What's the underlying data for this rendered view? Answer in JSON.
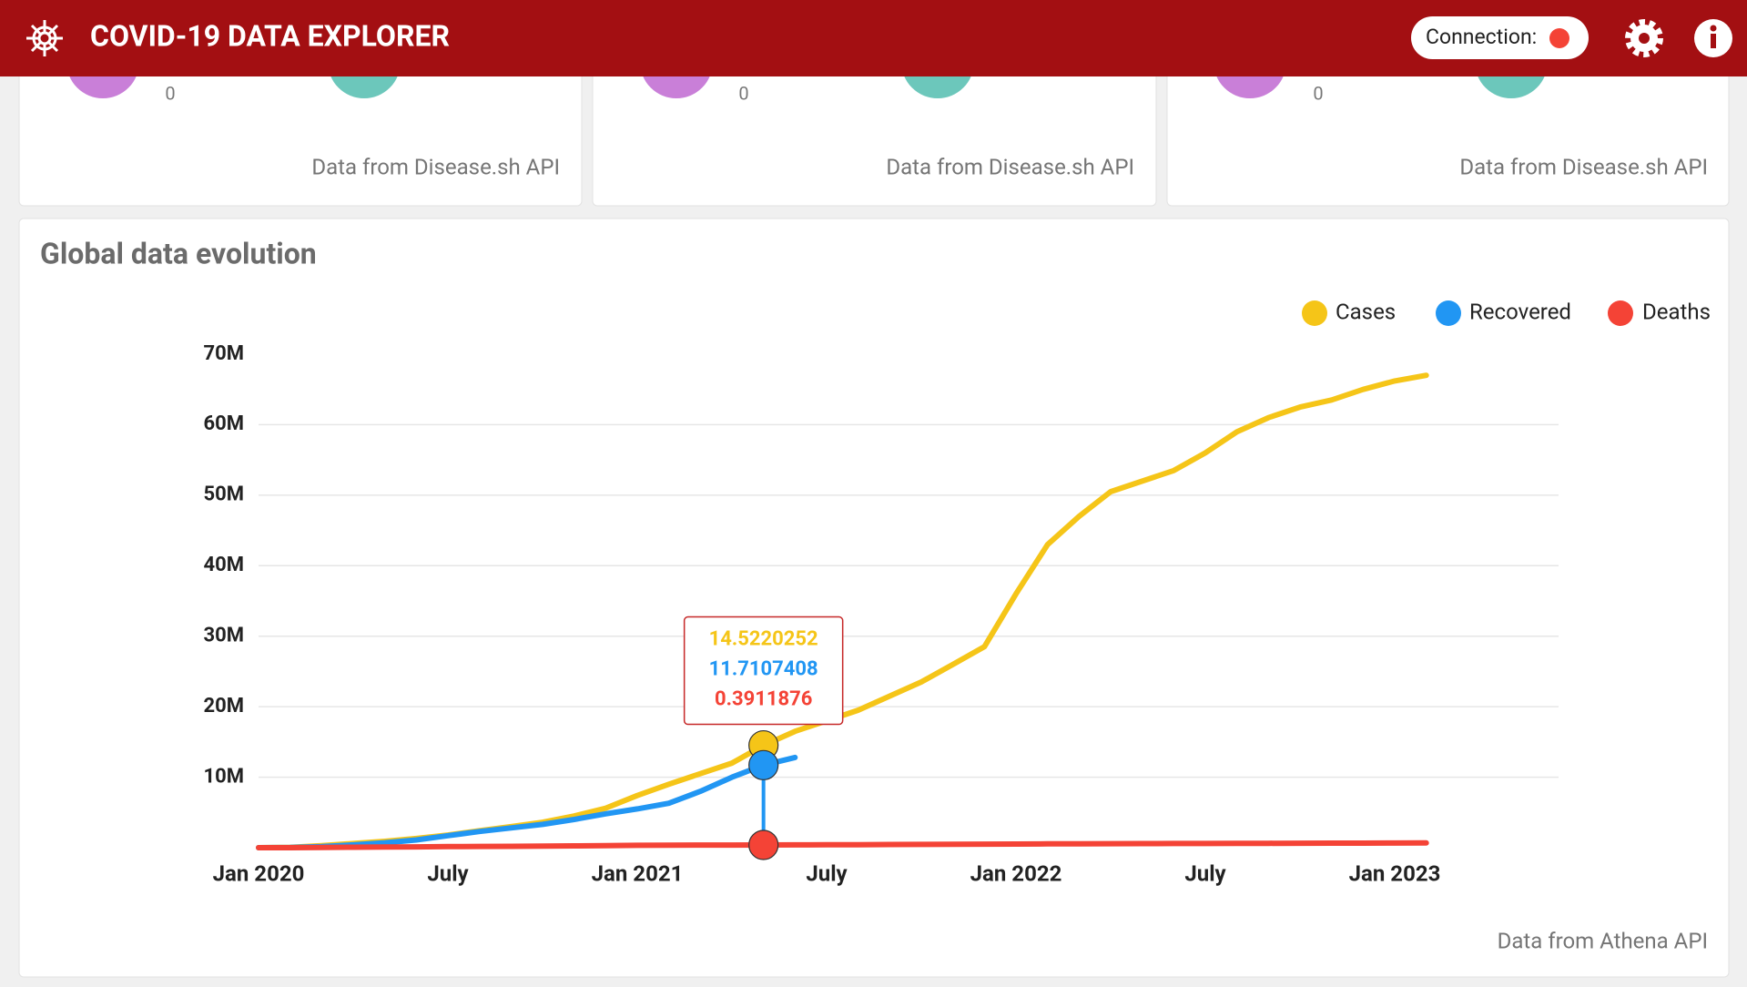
{
  "header": {
    "title": "COVID-19 DATA EXPLORER",
    "connection_label": "Connection:"
  },
  "cards": [
    {
      "value": "0",
      "source": "Data from Disease.sh API"
    },
    {
      "value": "0",
      "source": "Data from Disease.sh API"
    },
    {
      "value": "0",
      "source": "Data from Disease.sh API"
    }
  ],
  "panel": {
    "title": "Global data evolution",
    "source": "Data from Athena API"
  },
  "chart_data": {
    "type": "line",
    "x": [
      "2020-01",
      "2020-02",
      "2020-03",
      "2020-04",
      "2020-05",
      "2020-06",
      "2020-07",
      "2020-08",
      "2020-09",
      "2020-10",
      "2020-11",
      "2020-12",
      "2021-01",
      "2021-02",
      "2021-03",
      "2021-04",
      "2021-05",
      "2021-06",
      "2021-07",
      "2021-08",
      "2021-09",
      "2021-10",
      "2021-11",
      "2021-12",
      "2022-01",
      "2022-02",
      "2022-03",
      "2022-04",
      "2022-05",
      "2022-06",
      "2022-07",
      "2022-08",
      "2022-09",
      "2022-10",
      "2022-11",
      "2022-12",
      "2023-01",
      "2023-02"
    ],
    "series": [
      {
        "name": "Cases",
        "color": "#f5c518",
        "values": [
          0,
          0.05,
          0.3,
          0.6,
          0.9,
          1.3,
          1.8,
          2.4,
          3.0,
          3.6,
          4.5,
          5.6,
          7.4,
          9.0,
          10.5,
          12.0,
          14.5220252,
          16.5,
          18.0,
          19.5,
          21.5,
          23.5,
          26.0,
          28.5,
          36,
          43,
          47,
          50.5,
          52,
          53.5,
          56,
          59,
          61,
          62.5,
          63.5,
          65,
          66.2,
          67
        ]
      },
      {
        "name": "Recovered",
        "color": "#2196f3",
        "values": [
          0,
          0.03,
          0.15,
          0.4,
          0.7,
          1.1,
          1.7,
          2.3,
          2.8,
          3.3,
          4.0,
          4.8,
          5.5,
          6.3,
          8.0,
          10.0,
          11.7107408,
          12.8,
          null,
          null,
          null,
          null,
          null,
          null,
          null,
          null,
          null,
          null,
          null,
          null,
          null,
          null,
          null,
          null,
          null,
          null,
          null,
          null
        ]
      },
      {
        "name": "Deaths",
        "color": "#f44336",
        "values": [
          0,
          0.003,
          0.04,
          0.07,
          0.1,
          0.12,
          0.15,
          0.18,
          0.2,
          0.23,
          0.26,
          0.29,
          0.33,
          0.36,
          0.37,
          0.38,
          0.3911876,
          0.4,
          0.41,
          0.43,
          0.45,
          0.47,
          0.48,
          0.5,
          0.52,
          0.54,
          0.56,
          0.57,
          0.58,
          0.59,
          0.6,
          0.61,
          0.62,
          0.63,
          0.64,
          0.65,
          0.66,
          0.67
        ]
      }
    ],
    "xlim": [
      "2020-01",
      "2023-06"
    ],
    "xticks": [
      {
        "value": "2020-01",
        "label": "Jan 2020"
      },
      {
        "value": "2020-07",
        "label": "July"
      },
      {
        "value": "2021-01",
        "label": "Jan 2021"
      },
      {
        "value": "2021-07",
        "label": "July"
      },
      {
        "value": "2022-01",
        "label": "Jan 2022"
      },
      {
        "value": "2022-07",
        "label": "July"
      },
      {
        "value": "2023-01",
        "label": "Jan 2023"
      }
    ],
    "ylim": [
      0,
      70
    ],
    "yticks": [
      {
        "value": 10,
        "label": "10M"
      },
      {
        "value": 20,
        "label": "20M"
      },
      {
        "value": 30,
        "label": "30M"
      },
      {
        "value": 40,
        "label": "40M"
      },
      {
        "value": 50,
        "label": "50M"
      },
      {
        "value": 60,
        "label": "60M"
      },
      {
        "value": 70,
        "label": "70M"
      }
    ],
    "grid": true,
    "legend": "top-right",
    "tooltip": {
      "x": "2021-05",
      "values": [
        14.5220252,
        11.7107408,
        0.3911876
      ],
      "value_labels": [
        "14.5220252",
        "11.7107408",
        "0.3911876"
      ]
    }
  }
}
